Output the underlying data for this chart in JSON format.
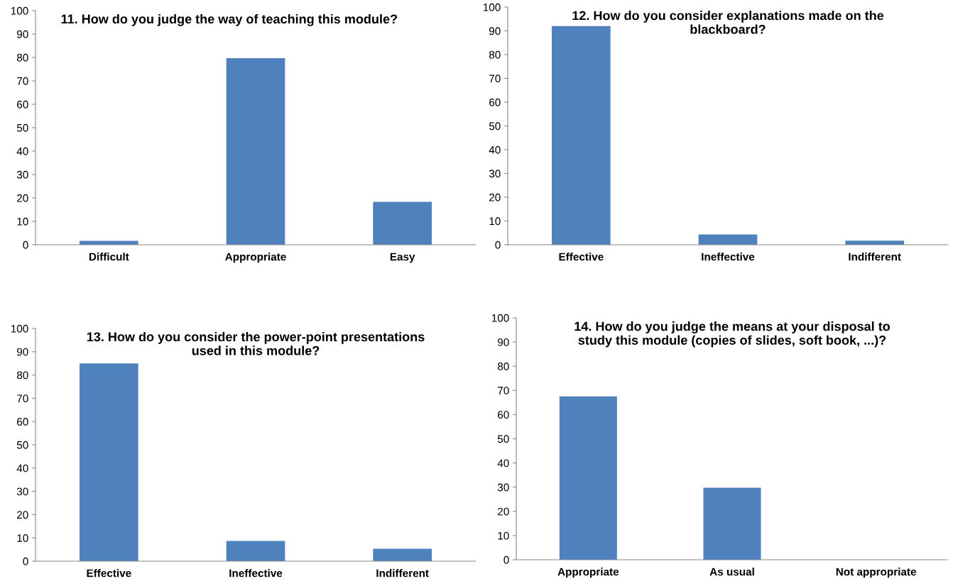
{
  "chart_data": [
    {
      "type": "bar",
      "title": "11. How do you judge the way of teaching this module?",
      "categories": [
        "Difficult",
        "Appropriate",
        "Easy"
      ],
      "values": [
        1.7,
        79.7,
        18.3
      ],
      "color": "#4f81bd",
      "ylim": [
        0,
        100
      ],
      "yticks": [
        0,
        10,
        20,
        30,
        40,
        50,
        60,
        70,
        80,
        90,
        100
      ],
      "grid": false
    },
    {
      "type": "bar",
      "title": "12. How do you consider explanations made on the\nblackboard?",
      "categories": [
        "Effective",
        "Ineffective",
        "Indifferent"
      ],
      "values": [
        92,
        4.3,
        1.7
      ],
      "color": "#4f81bd",
      "ylim": [
        0,
        100
      ],
      "yticks": [
        0,
        10,
        20,
        30,
        40,
        50,
        60,
        70,
        80,
        90,
        100
      ],
      "grid": false
    },
    {
      "type": "bar",
      "title": "13. How do you consider the power-point presentations\nused in this module?",
      "categories": [
        "Effective",
        "Ineffective",
        "Indifferent"
      ],
      "values": [
        85,
        8.7,
        5.3
      ],
      "color": "#4f81bd",
      "ylim": [
        0,
        100
      ],
      "yticks": [
        0,
        10,
        20,
        30,
        40,
        50,
        60,
        70,
        80,
        90,
        100
      ],
      "grid": false
    },
    {
      "type": "bar",
      "title": "14. How do you judge the means at your disposal to\nstudy this module (copies of slides, soft book, ...)?",
      "categories": [
        "Appropriate",
        "As usual",
        "Not appropriate"
      ],
      "values": [
        67.5,
        29.8,
        0
      ],
      "color": "#4f81bd",
      "ylim": [
        0,
        100
      ],
      "yticks": [
        0,
        10,
        20,
        30,
        40,
        50,
        60,
        70,
        80,
        90,
        100
      ],
      "grid": false
    }
  ]
}
